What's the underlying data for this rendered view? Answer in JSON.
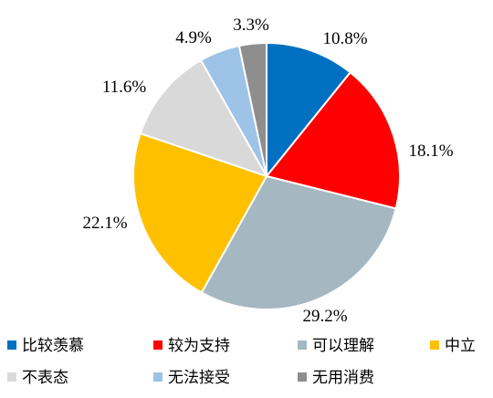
{
  "chart_data": {
    "type": "pie",
    "start_angle_deg": 0,
    "direction": "clockwise",
    "legend_position": "bottom",
    "slices": [
      {
        "name": "比较羡慕",
        "value": 10.8,
        "label": "10.8%",
        "color": "#0070C0"
      },
      {
        "name": "较为支持",
        "value": 18.1,
        "label": "18.1%",
        "color": "#FF0000"
      },
      {
        "name": "可以理解",
        "value": 29.2,
        "label": "29.2%",
        "color": "#A5B7C1"
      },
      {
        "name": "中立",
        "value": 22.1,
        "label": "22.1%",
        "color": "#FFC000"
      },
      {
        "name": "不表态",
        "value": 11.6,
        "label": "11.6%",
        "color": "#D9D9D9"
      },
      {
        "name": "无法接受",
        "value": 4.9,
        "label": "4.9%",
        "color": "#9DC3E6"
      },
      {
        "name": "无用消费",
        "value": 3.3,
        "label": "3.3%",
        "color": "#8E8E8E"
      }
    ]
  }
}
